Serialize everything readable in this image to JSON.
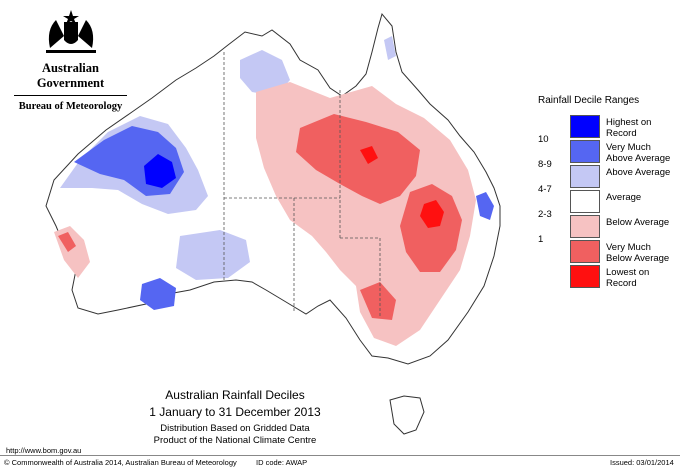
{
  "header": {
    "government": "Australian Government",
    "bureau": "Bureau of Meteorology"
  },
  "legend": {
    "title": "Rainfall Decile Ranges",
    "items": [
      {
        "tick": "",
        "label": "Highest on Record",
        "color": "#0000ff"
      },
      {
        "tick": "10",
        "label": "Very Much Above Average",
        "color": "#5566f2"
      },
      {
        "tick": "8-9",
        "label": "Above Average",
        "color": "#c4c8f4"
      },
      {
        "tick": "4-7",
        "label": "Average",
        "color": "#ffffff"
      },
      {
        "tick": "2-3",
        "label": "Below Average",
        "color": "#f6c2c2"
      },
      {
        "tick": "1",
        "label": "Very Much Below Average",
        "color": "#f06060"
      },
      {
        "tick": "",
        "label": "Lowest on Record",
        "color": "#ff1010"
      }
    ]
  },
  "caption": {
    "title": "Australian Rainfall Deciles",
    "period": "1 January to 31 December 2013",
    "line3": "Distribution Based on Gridded Data",
    "line4": "Product of the National Climate Centre"
  },
  "url": "http://www.bom.gov.au",
  "footer": {
    "copyright": "© Commonwealth of Australia 2014, Australian Bureau of Meteorology",
    "id": "ID code: AWAP",
    "issued": "Issued: 03/01/2014"
  }
}
